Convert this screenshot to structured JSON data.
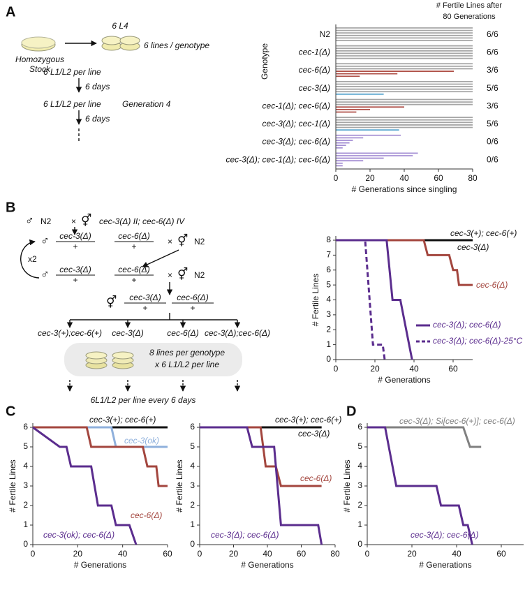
{
  "panel_labels": [
    "A",
    "B",
    "C",
    "D"
  ],
  "schematic_a": {
    "stock": [
      "Homozygous",
      "Stock"
    ],
    "l4": "6 L4",
    "lines": "6 lines / genotype",
    "step1": "6 L1/L2 per line",
    "days1": "6 days",
    "step2": "6 L1/L2 per line",
    "generation": "Generation 4",
    "days2": "6 days"
  },
  "schematic_b": {
    "row1": [
      "♂",
      "N2",
      "×",
      "⚥",
      "cec-3(Δ) II; cec-6(Δ) IV"
    ],
    "row2": [
      "♂",
      "cec-3(Δ)",
      "+",
      "cec-6(Δ)",
      "+",
      "×",
      "⚥",
      "N2"
    ],
    "repeat": "x2",
    "row3": [
      "♂",
      "cec-3(Δ)",
      "+",
      "cec-6(Δ)",
      "+",
      "×",
      "⚥",
      "N2"
    ],
    "row4": [
      "⚥",
      "cec-3(Δ)",
      "+",
      "cec-6(Δ)",
      "+"
    ],
    "genotypes": [
      "cec-3(+);cec-6(+)",
      "cec-3(Δ)",
      "cec-6(Δ)",
      "cec-3(Δ);cec-6(Δ)"
    ],
    "box": [
      "8 lines per genotype",
      "x 6 L1/L2 per line"
    ],
    "footer": "6L1/L2 per line every 6 days"
  },
  "chart_data": [
    {
      "type": "segments",
      "title_lines": [
        "# Fertile Lines after",
        "80 Generations"
      ],
      "ylabel": "Genotype",
      "xlabel": "# Generations since singling",
      "xlim": [
        0,
        80
      ],
      "xticks": [
        0,
        20,
        40,
        60,
        80
      ],
      "groups": [
        {
          "name": "N2",
          "fertile": "6/6",
          "values": [
            80,
            80,
            80,
            80,
            80,
            80
          ],
          "colors": [
            "#a6a6a6",
            "#a6a6a6",
            "#a6a6a6",
            "#a6a6a6",
            "#a6a6a6",
            "#a6a6a6"
          ]
        },
        {
          "name": "cec-1(Δ)",
          "fertile": "6/6",
          "values": [
            80,
            80,
            80,
            80,
            80,
            80
          ],
          "colors": [
            "#a6a6a6",
            "#a6a6a6",
            "#a6a6a6",
            "#a6a6a6",
            "#a6a6a6",
            "#a6a6a6"
          ]
        },
        {
          "name": "cec-6(Δ)",
          "fertile": "3/6",
          "values": [
            80,
            80,
            80,
            69,
            36,
            14
          ],
          "colors": [
            "#a6a6a6",
            "#a6a6a6",
            "#a6a6a6",
            "#b0524a",
            "#b0524a",
            "#b0524a"
          ]
        },
        {
          "name": "cec-3(Δ)",
          "fertile": "5/6",
          "values": [
            80,
            80,
            80,
            80,
            80,
            28
          ],
          "colors": [
            "#a6a6a6",
            "#a6a6a6",
            "#a6a6a6",
            "#a6a6a6",
            "#a6a6a6",
            "#5aa6cf"
          ]
        },
        {
          "name": "cec-1(Δ); cec-6(Δ)",
          "fertile": "3/6",
          "values": [
            80,
            80,
            80,
            40,
            20,
            12
          ],
          "colors": [
            "#a6a6a6",
            "#a6a6a6",
            "#a6a6a6",
            "#b0524a",
            "#b0524a",
            "#b0524a"
          ]
        },
        {
          "name": "cec-3(Δ); cec-1(Δ)",
          "fertile": "5/6",
          "values": [
            80,
            80,
            80,
            80,
            80,
            37
          ],
          "colors": [
            "#a6a6a6",
            "#a6a6a6",
            "#a6a6a6",
            "#a6a6a6",
            "#a6a6a6",
            "#5aa6cf"
          ]
        },
        {
          "name": "cec-3(Δ); cec-6(Δ)",
          "fertile": "0/6",
          "values": [
            38,
            16,
            10,
            8,
            6,
            4
          ],
          "colors": [
            "#a690d4",
            "#a690d4",
            "#a690d4",
            "#a690d4",
            "#a690d4",
            "#a690d4"
          ]
        },
        {
          "name": "cec-3(Δ); cec-1(Δ); cec-6(Δ)",
          "fertile": "0/6",
          "values": [
            48,
            45,
            28,
            16,
            4,
            4
          ],
          "colors": [
            "#a690d4",
            "#a690d4",
            "#a690d4",
            "#a690d4",
            "#a690d4",
            "#a690d4"
          ]
        }
      ]
    },
    {
      "type": "line",
      "xlabel": "# Generations",
      "ylabel": "# Fertile Lines",
      "xlim": [
        0,
        70
      ],
      "xticks": [
        0,
        20,
        40,
        60
      ],
      "ylim": [
        0,
        8
      ],
      "yticks": [
        0,
        1,
        2,
        3,
        4,
        5,
        6,
        7,
        8
      ],
      "series": [
        {
          "name": "cec-3(+); cec-6(+)",
          "color": "#111111",
          "x": [
            0,
            70
          ],
          "values": [
            8,
            8
          ]
        },
        {
          "name": "cec-3(Δ)",
          "color": "#111111",
          "x": [
            0,
            70
          ],
          "values": [
            8,
            8
          ]
        },
        {
          "name": "cec-6(Δ)",
          "color": "#a3463e",
          "x": [
            0,
            45,
            47,
            58,
            60,
            62,
            63,
            70
          ],
          "values": [
            8,
            8,
            7,
            7,
            6,
            6,
            5,
            5
          ]
        },
        {
          "name": "cec-3(Δ); cec-6(Δ)",
          "color": "#5b2d8e",
          "x": [
            0,
            26,
            29,
            33,
            39
          ],
          "values": [
            8,
            8,
            4,
            4,
            0
          ]
        },
        {
          "name": "cec-3(Δ); cec-6(Δ)-25°C",
          "color": "#5b2d8e",
          "dashed": true,
          "x": [
            0,
            15,
            19,
            24,
            25
          ],
          "values": [
            8,
            8,
            1,
            1,
            0
          ]
        }
      ]
    },
    {
      "type": "line",
      "xlabel": "# Generations",
      "ylabel": "# Fertile Lines",
      "xlim": [
        0,
        60
      ],
      "xticks": [
        0,
        20,
        40,
        60
      ],
      "ylim": [
        0,
        6
      ],
      "yticks": [
        0,
        1,
        2,
        3,
        4,
        5,
        6
      ],
      "series": [
        {
          "name": "cec-3(+); cec-6(+)",
          "color": "#111111",
          "x": [
            0,
            60
          ],
          "values": [
            6,
            6
          ]
        },
        {
          "name": "cec-3(ok)",
          "color": "#8fb0dc",
          "x": [
            0,
            35,
            37,
            60
          ],
          "values": [
            6,
            6,
            5,
            5
          ]
        },
        {
          "name": "cec-6(Δ)",
          "color": "#a3463e",
          "x": [
            0,
            24,
            26,
            49,
            51,
            55,
            56,
            60
          ],
          "values": [
            6,
            6,
            5,
            5,
            4,
            4,
            3,
            3
          ]
        },
        {
          "name": "cec-3(ok); cec-6(Δ)",
          "color": "#5b2d8e",
          "x": [
            0,
            12,
            15,
            17,
            26,
            29,
            35,
            37,
            43,
            46
          ],
          "values": [
            6,
            5,
            5,
            4,
            4,
            2,
            2,
            1,
            1,
            0
          ]
        }
      ]
    },
    {
      "type": "line",
      "xlabel": "# Generations",
      "ylabel": "# Fertile Lines",
      "xlim": [
        0,
        80
      ],
      "xticks": [
        0,
        20,
        40,
        60,
        80
      ],
      "ylim": [
        0,
        6
      ],
      "yticks": [
        0,
        1,
        2,
        3,
        4,
        5,
        6
      ],
      "series": [
        {
          "name": "cec-3(+); cec-6(+)",
          "color": "#111111",
          "x": [
            0,
            72
          ],
          "values": [
            6,
            6
          ]
        },
        {
          "name": "cec-3(Δ)",
          "color": "#111111",
          "x": [
            0,
            72
          ],
          "values": [
            6,
            6
          ]
        },
        {
          "name": "cec-6(Δ)",
          "color": "#a3463e",
          "x": [
            0,
            36,
            39,
            45,
            48,
            72
          ],
          "values": [
            6,
            6,
            4,
            4,
            3,
            3
          ]
        },
        {
          "name": "cec-3(Δ); cec-6(Δ)",
          "color": "#5b2d8e",
          "x": [
            0,
            28,
            31,
            44,
            48,
            70,
            72
          ],
          "values": [
            6,
            6,
            5,
            5,
            1,
            1,
            0
          ]
        }
      ]
    },
    {
      "type": "line",
      "xlabel": "# Generations",
      "ylabel": "# Fertile Lines",
      "xlim": [
        0,
        70
      ],
      "xticks": [
        0,
        20,
        40,
        60
      ],
      "ylim": [
        0,
        6
      ],
      "yticks": [
        0,
        1,
        2,
        3,
        4,
        5,
        6
      ],
      "series": [
        {
          "name": "cec-3(Δ); Si[cec-6(+)]; cec-6(Δ)",
          "color": "#808080",
          "x": [
            0,
            43,
            46,
            51
          ],
          "values": [
            6,
            6,
            5,
            5
          ]
        },
        {
          "name": "cec-3(Δ); cec-6(Δ)",
          "color": "#5b2d8e",
          "x": [
            0,
            8,
            13,
            31,
            33,
            41,
            43,
            45,
            47
          ],
          "values": [
            6,
            6,
            3,
            3,
            2,
            2,
            1,
            1,
            0
          ]
        }
      ]
    }
  ]
}
